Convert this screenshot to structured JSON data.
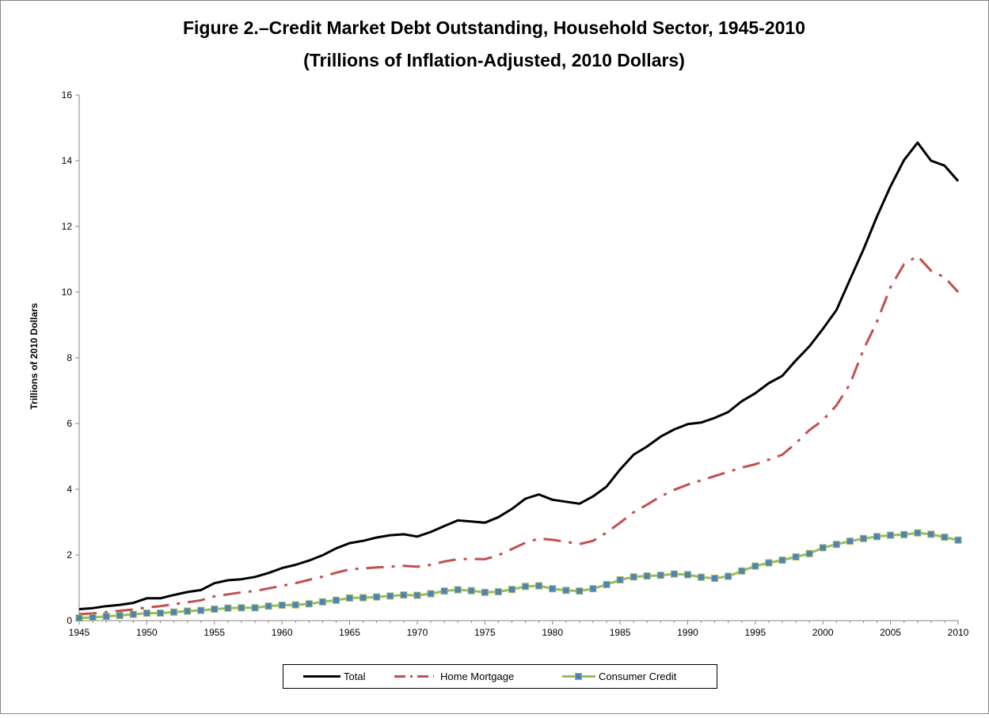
{
  "chart_data": {
    "type": "line",
    "title": [
      "Figure 2.–Credit Market Debt Outstanding, Household Sector, 1945-2010",
      "(Trillions of Inflation-Adjusted, 2010 Dollars)"
    ],
    "xlabel": "",
    "ylabel": "Trillions of 2010 Dollars",
    "xlim": [
      1945,
      2010
    ],
    "ylim": [
      0,
      16
    ],
    "x_ticks": [
      "1945",
      "1950",
      "1955",
      "1960",
      "1965",
      "1970",
      "1975",
      "1980",
      "1985",
      "1990",
      "1995",
      "2000",
      "2005",
      "2010"
    ],
    "y_ticks": [
      "0",
      "2",
      "4",
      "6",
      "8",
      "10",
      "12",
      "14",
      "16"
    ],
    "grid": false,
    "legend": "bottom",
    "x": [
      1945,
      1946,
      1947,
      1948,
      1949,
      1950,
      1951,
      1952,
      1953,
      1954,
      1955,
      1956,
      1957,
      1958,
      1959,
      1960,
      1961,
      1962,
      1963,
      1964,
      1965,
      1966,
      1967,
      1968,
      1969,
      1970,
      1971,
      1972,
      1973,
      1974,
      1975,
      1976,
      1977,
      1978,
      1979,
      1980,
      1981,
      1982,
      1983,
      1984,
      1985,
      1986,
      1987,
      1988,
      1989,
      1990,
      1991,
      1992,
      1993,
      1994,
      1995,
      1996,
      1997,
      1998,
      1999,
      2000,
      2001,
      2002,
      2003,
      2004,
      2005,
      2006,
      2007,
      2008,
      2009,
      2010
    ],
    "series": [
      {
        "name": "Total",
        "color": "#000000",
        "style": "solid",
        "values": [
          0.35,
          0.38,
          0.44,
          0.48,
          0.54,
          0.68,
          0.68,
          0.78,
          0.87,
          0.93,
          1.14,
          1.23,
          1.26,
          1.33,
          1.45,
          1.6,
          1.7,
          1.83,
          1.99,
          2.2,
          2.36,
          2.43,
          2.53,
          2.6,
          2.63,
          2.56,
          2.7,
          2.88,
          3.05,
          3.02,
          2.98,
          3.15,
          3.4,
          3.71,
          3.84,
          3.68,
          3.62,
          3.56,
          3.78,
          4.08,
          4.6,
          5.05,
          5.3,
          5.6,
          5.82,
          5.98,
          6.03,
          6.17,
          6.35,
          6.68,
          6.92,
          7.23,
          7.45,
          7.92,
          8.35,
          8.88,
          9.45,
          10.38,
          11.3,
          12.3,
          13.22,
          14.02,
          14.55,
          14.0,
          13.85,
          13.38
        ]
      },
      {
        "name": "Home Mortgage",
        "color": "#c0504d",
        "style": "dashdot",
        "values": [
          0.2,
          0.22,
          0.26,
          0.3,
          0.34,
          0.4,
          0.44,
          0.5,
          0.56,
          0.62,
          0.74,
          0.8,
          0.86,
          0.9,
          0.98,
          1.06,
          1.14,
          1.24,
          1.34,
          1.46,
          1.56,
          1.59,
          1.62,
          1.64,
          1.67,
          1.64,
          1.7,
          1.8,
          1.87,
          1.88,
          1.87,
          1.99,
          2.18,
          2.37,
          2.5,
          2.46,
          2.4,
          2.33,
          2.43,
          2.68,
          2.98,
          3.3,
          3.53,
          3.78,
          3.98,
          4.14,
          4.27,
          4.4,
          4.53,
          4.66,
          4.76,
          4.9,
          5.05,
          5.4,
          5.8,
          6.1,
          6.55,
          7.2,
          8.25,
          9.1,
          10.15,
          10.85,
          11.1,
          10.65,
          10.45,
          10.0
        ]
      },
      {
        "name": "Consumer Credit",
        "color": "#9bbb59",
        "style": "marker",
        "marker_color": "#4f81bd",
        "values": [
          0.08,
          0.1,
          0.13,
          0.16,
          0.19,
          0.23,
          0.23,
          0.26,
          0.29,
          0.31,
          0.35,
          0.38,
          0.39,
          0.39,
          0.44,
          0.47,
          0.48,
          0.51,
          0.57,
          0.62,
          0.69,
          0.7,
          0.72,
          0.75,
          0.78,
          0.77,
          0.82,
          0.9,
          0.94,
          0.91,
          0.86,
          0.88,
          0.95,
          1.04,
          1.06,
          0.97,
          0.92,
          0.9,
          0.97,
          1.1,
          1.24,
          1.33,
          1.36,
          1.38,
          1.42,
          1.4,
          1.32,
          1.29,
          1.35,
          1.51,
          1.66,
          1.76,
          1.84,
          1.94,
          2.04,
          2.22,
          2.32,
          2.42,
          2.5,
          2.56,
          2.6,
          2.62,
          2.67,
          2.63,
          2.54,
          2.45
        ]
      }
    ]
  }
}
